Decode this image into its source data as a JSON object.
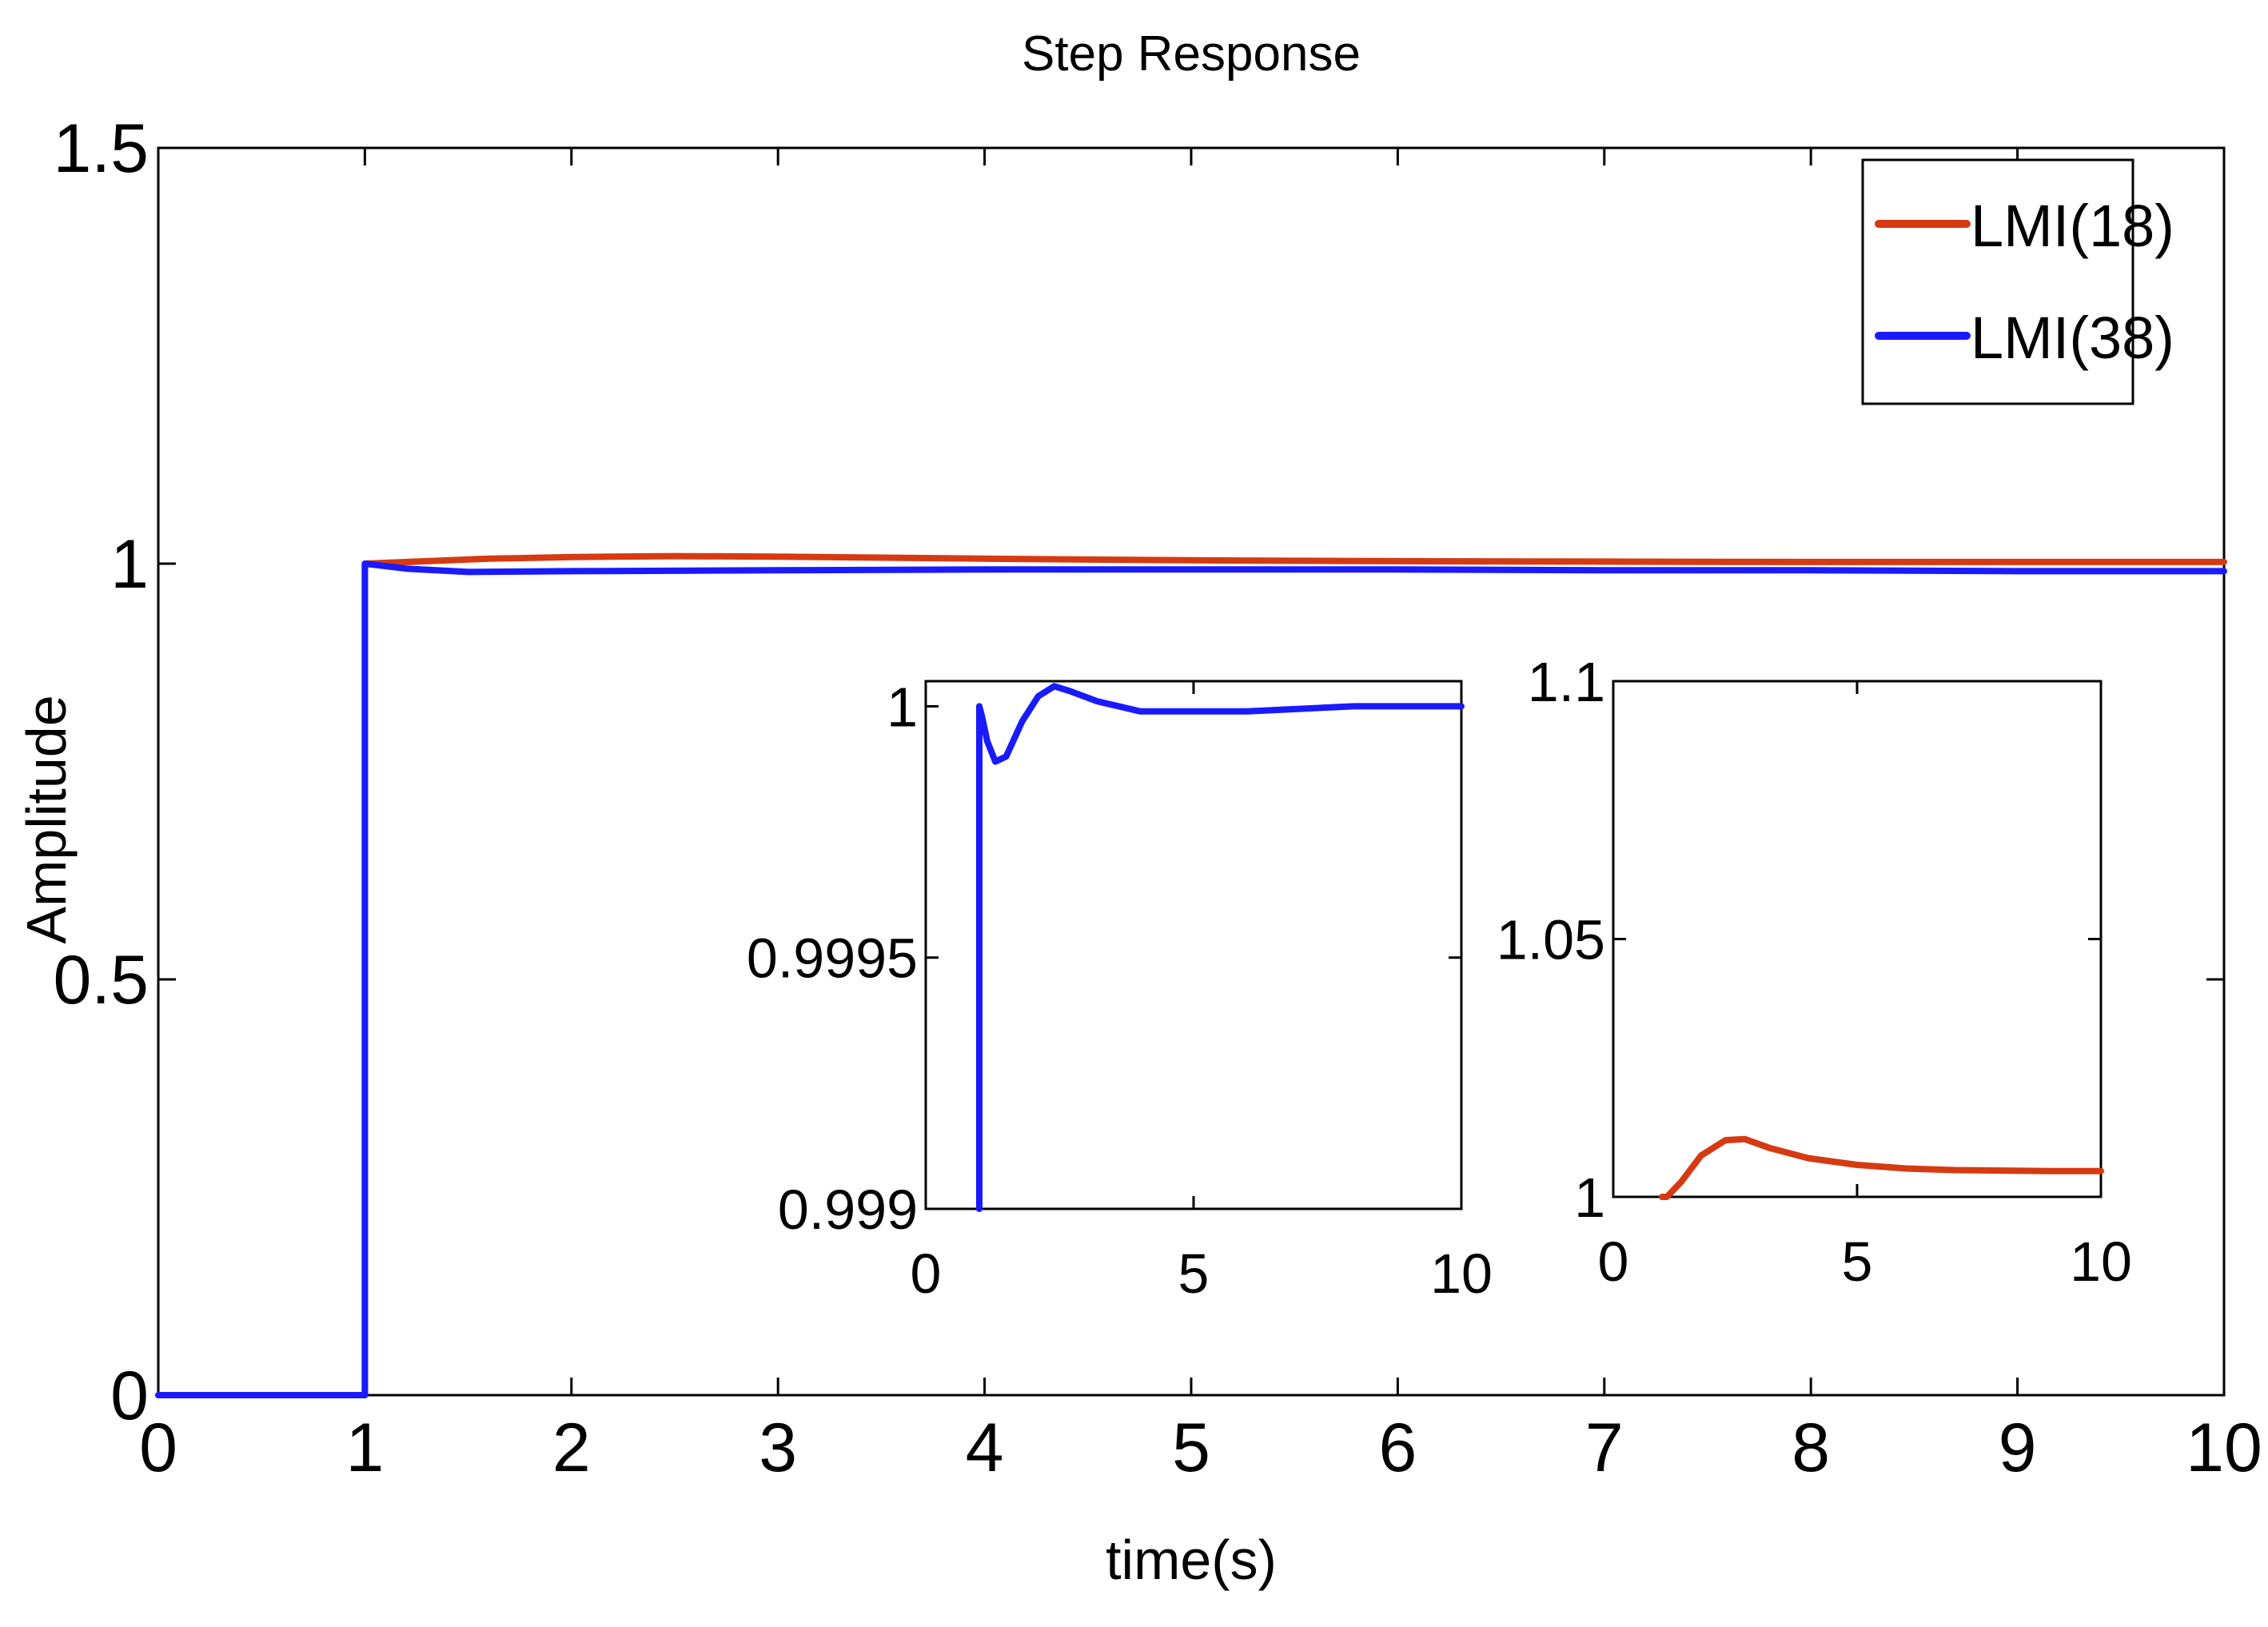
{
  "chart_data": {
    "type": "line",
    "title": "Step Response",
    "xlabel": "time(s)",
    "ylabel": "Amplitude",
    "xlim": [
      0,
      10
    ],
    "ylim": [
      0,
      1.5
    ],
    "xticks": [
      "0",
      "1",
      "2",
      "3",
      "4",
      "5",
      "6",
      "7",
      "8",
      "9",
      "10"
    ],
    "yticks": [
      "0",
      "0.5",
      "1",
      "1.5"
    ],
    "legend_position": "top-right",
    "colors": {
      "lmi18": "#d63a12",
      "lmi38": "#1a1aff"
    },
    "series": [
      {
        "name": "LMI(18)",
        "color": "#d63a12",
        "x": [
          0,
          1,
          1,
          1.3,
          1.6,
          2.0,
          2.5,
          3.0,
          4.0,
          5.0,
          6.0,
          7.0,
          8.0,
          9.0,
          10.0
        ],
        "y": [
          0,
          0,
          1.0,
          1.003,
          1.006,
          1.008,
          1.009,
          1.0085,
          1.006,
          1.004,
          1.003,
          1.0025,
          1.002,
          1.002,
          1.002
        ]
      },
      {
        "name": "LMI(38)",
        "color": "#1a1aff",
        "x": [
          0,
          1,
          1,
          1.2,
          1.5,
          2.0,
          3.0,
          4.0,
          5.0,
          6.0,
          7.0,
          8.0,
          9.0,
          10.0
        ],
        "y": [
          0,
          0,
          1.0,
          0.994,
          0.99,
          0.991,
          0.992,
          0.993,
          0.993,
          0.993,
          0.992,
          0.992,
          0.991,
          0.991
        ]
      }
    ],
    "insets": [
      {
        "series": "LMI(38)",
        "color": "#1a1aff",
        "xlim": [
          0,
          10
        ],
        "ylim": [
          0.999,
          1.00005
        ],
        "xticks": [
          "0",
          "5",
          "10"
        ],
        "yticks": [
          "0.999",
          "0.9995",
          "1"
        ],
        "x": [
          1.0,
          1.0,
          1.0,
          1.05,
          1.15,
          1.3,
          1.5,
          1.8,
          2.1,
          2.4,
          2.7,
          3.2,
          4.0,
          5.0,
          6.0,
          8.0,
          10.0
        ],
        "y": [
          0.999,
          0.99995,
          1.0,
          0.99998,
          0.99993,
          0.99989,
          0.9999,
          0.99997,
          1.00002,
          1.00004,
          1.00003,
          1.00001,
          0.99999,
          0.99999,
          0.99999,
          1.0,
          1.0
        ]
      },
      {
        "series": "LMI(18)",
        "color": "#d63a12",
        "xlim": [
          0,
          10
        ],
        "ylim": [
          1.0,
          1.1
        ],
        "xticks": [
          "0",
          "5",
          "10"
        ],
        "yticks": [
          "1",
          "1.05",
          "1.1"
        ],
        "x": [
          1.0,
          1.1,
          1.4,
          1.8,
          2.3,
          2.7,
          3.2,
          4.0,
          5.0,
          6.0,
          7.0,
          8.0,
          9.0,
          10.0
        ],
        "y": [
          1.0,
          1.0,
          1.003,
          1.008,
          1.011,
          1.0112,
          1.0095,
          1.0075,
          1.0062,
          1.0055,
          1.0052,
          1.0051,
          1.005,
          1.005
        ]
      }
    ]
  }
}
